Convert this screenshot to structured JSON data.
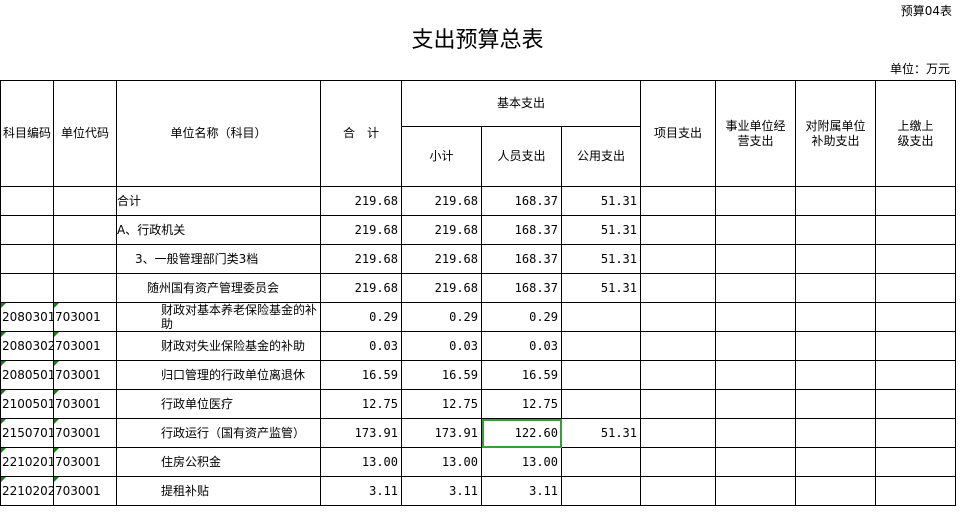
{
  "header": {
    "badge": "预算04表",
    "title": "支出预算总表",
    "unit": "单位：万元"
  },
  "table": {
    "columns": {
      "code": "科目编码",
      "unit": "单位代码",
      "name": "单位名称（科目）",
      "total": "合　计",
      "basic": "基本支出",
      "subtotal": "小计",
      "personnel": "人员支出",
      "public": "公用支出",
      "project": "项目支出",
      "business": "事业单位经营支出",
      "subsidy": "对附属单位补助支出",
      "remit": "上缴上级支出"
    },
    "rows": [
      {
        "name": "合计",
        "total": "219.68",
        "subtotal": "219.68",
        "personnel": "168.37",
        "public": "51.31"
      },
      {
        "name": "A、行政机关",
        "total": "219.68",
        "subtotal": "219.68",
        "personnel": "168.37",
        "public": "51.31"
      },
      {
        "name": "3、一般管理部门类3档",
        "total": "219.68",
        "subtotal": "219.68",
        "personnel": "168.37",
        "public": "51.31"
      },
      {
        "name": "随州国有资产管理委员会",
        "total": "219.68",
        "subtotal": "219.68",
        "personnel": "168.37",
        "public": "51.31"
      },
      {
        "code": "2080301",
        "unit": "703001",
        "name": "财政对基本养老保险基金的补助",
        "total": "0.29",
        "subtotal": "0.29",
        "personnel": "0.29"
      },
      {
        "code": "2080302",
        "unit": "703001",
        "name": "财政对失业保险基金的补助",
        "total": "0.03",
        "subtotal": "0.03",
        "personnel": "0.03"
      },
      {
        "code": "2080501",
        "unit": "703001",
        "name": "归口管理的行政单位离退休",
        "total": "16.59",
        "subtotal": "16.59",
        "personnel": "16.59"
      },
      {
        "code": "2100501",
        "unit": "703001",
        "name": "行政单位医疗",
        "total": "12.75",
        "subtotal": "12.75",
        "personnel": "12.75"
      },
      {
        "code": "2150701",
        "unit": "703001",
        "name": "行政运行（国有资产监管）",
        "total": "173.91",
        "subtotal": "173.91",
        "personnel": "122.60",
        "public": "51.31"
      },
      {
        "code": "2210201",
        "unit": "703001",
        "name": "住房公积金",
        "total": "13.00",
        "subtotal": "13.00",
        "personnel": "13.00"
      },
      {
        "code": "2210202",
        "unit": "703001",
        "name": "提租补贴",
        "total": "3.11",
        "subtotal": "3.11",
        "personnel": "3.11"
      }
    ]
  }
}
